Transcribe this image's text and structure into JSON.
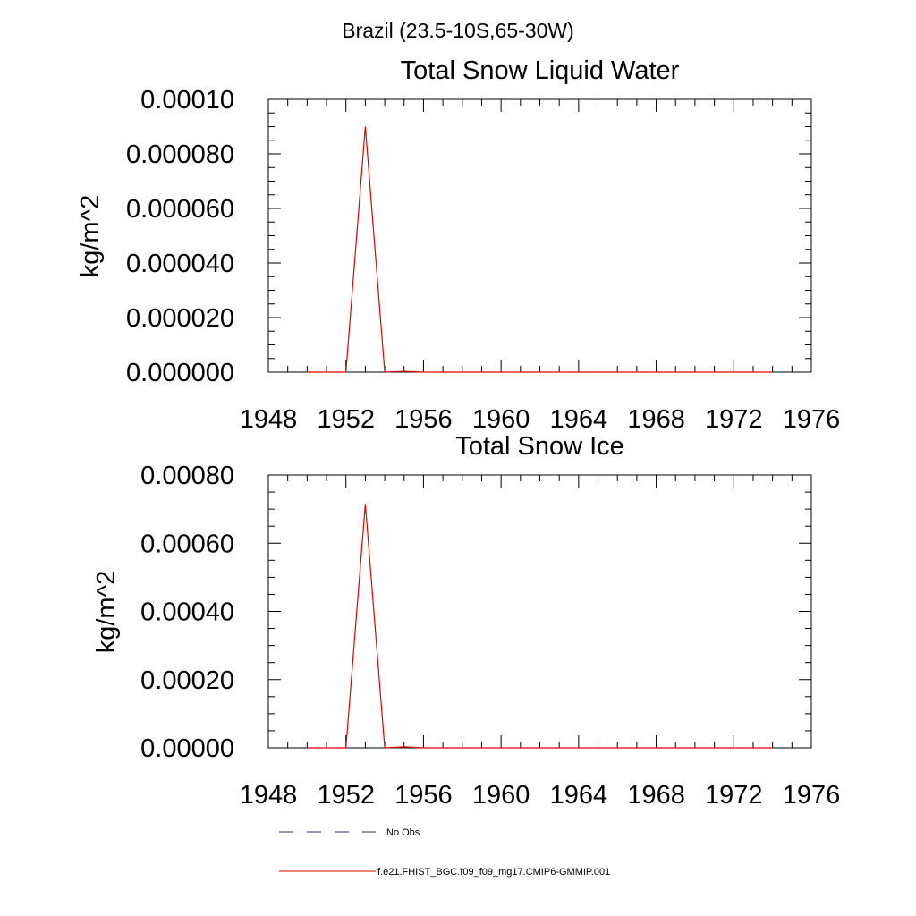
{
  "figure": {
    "title": "Brazil (23.5-10S,65-30W)"
  },
  "chart_data": [
    {
      "type": "line",
      "title": "Total Snow Liquid Water",
      "ylabel": "kg/m^2",
      "xlabel": "",
      "xlim": [
        1948,
        1976
      ],
      "ylim": [
        0,
        0.0001
      ],
      "x_ticks": [
        1948,
        1952,
        1956,
        1960,
        1964,
        1968,
        1972,
        1976
      ],
      "x_tick_labels": [
        "1948",
        "1952",
        "1956",
        "1960",
        "1964",
        "1968",
        "1972",
        "1976"
      ],
      "y_ticks": [
        0,
        2e-05,
        4e-05,
        6e-05,
        8e-05,
        0.0001
      ],
      "y_tick_labels": [
        "0.000000",
        "0.000020",
        "0.000040",
        "0.000060",
        "0.000080",
        "0.00010"
      ],
      "grid": false,
      "series": [
        {
          "name": "No Obs",
          "color": "#2b2b5c",
          "dash": true,
          "x": [],
          "y": []
        },
        {
          "name": "f.e21.FHIST_BGC.f09_f09_mg17.CMIP6-GMMIP.001",
          "color": "#e00000",
          "dash": false,
          "x": [
            1950,
            1951,
            1952,
            1953,
            1954,
            1955,
            1956,
            1957,
            1958,
            1959,
            1960,
            1961,
            1962,
            1963,
            1964,
            1965,
            1966,
            1967,
            1968,
            1969,
            1970,
            1971,
            1972,
            1973,
            1974
          ],
          "y": [
            0,
            0,
            0,
            9e-05,
            0,
            3e-07,
            0,
            0,
            0,
            0,
            0,
            0,
            0,
            0,
            0,
            0,
            0,
            0,
            0,
            0,
            0,
            0,
            0,
            0,
            0
          ]
        }
      ]
    },
    {
      "type": "line",
      "title": "Total Snow Ice",
      "ylabel": "kg/m^2",
      "xlabel": "",
      "xlim": [
        1948,
        1976
      ],
      "ylim": [
        0,
        0.0008
      ],
      "x_ticks": [
        1948,
        1952,
        1956,
        1960,
        1964,
        1968,
        1972,
        1976
      ],
      "x_tick_labels": [
        "1948",
        "1952",
        "1956",
        "1960",
        "1964",
        "1968",
        "1972",
        "1976"
      ],
      "y_ticks": [
        0,
        0.0002,
        0.0004,
        0.0006,
        0.0008
      ],
      "y_tick_labels": [
        "0.00000",
        "0.00020",
        "0.00040",
        "0.00060",
        "0.00080"
      ],
      "grid": false,
      "series": [
        {
          "name": "No Obs",
          "color": "#2b2b5c",
          "dash": true,
          "x": [],
          "y": []
        },
        {
          "name": "f.e21.FHIST_BGC.f09_f09_mg17.CMIP6-GMMIP.001",
          "color": "#e00000",
          "dash": false,
          "x": [
            1950,
            1951,
            1952,
            1953,
            1954,
            1955,
            1956,
            1957,
            1958,
            1959,
            1960,
            1961,
            1962,
            1963,
            1964,
            1965,
            1966,
            1967,
            1968,
            1969,
            1970,
            1971,
            1972,
            1973,
            1974
          ],
          "y": [
            0,
            0,
            0,
            0.000715,
            0,
            3e-06,
            0,
            0,
            0,
            0,
            0,
            0,
            0,
            0,
            0,
            0,
            0,
            0,
            0,
            0,
            0,
            0,
            0,
            0,
            0
          ]
        }
      ]
    }
  ],
  "legend": {
    "placement": "bottom-center",
    "items": [
      {
        "label": "No Obs",
        "color": "#2b2b5c",
        "dash": true
      },
      {
        "label": "f.e21.FHIST_BGC.f09_f09_mg17.CMIP6-GMMIP.001",
        "color": "#e00000",
        "dash": false
      }
    ]
  }
}
